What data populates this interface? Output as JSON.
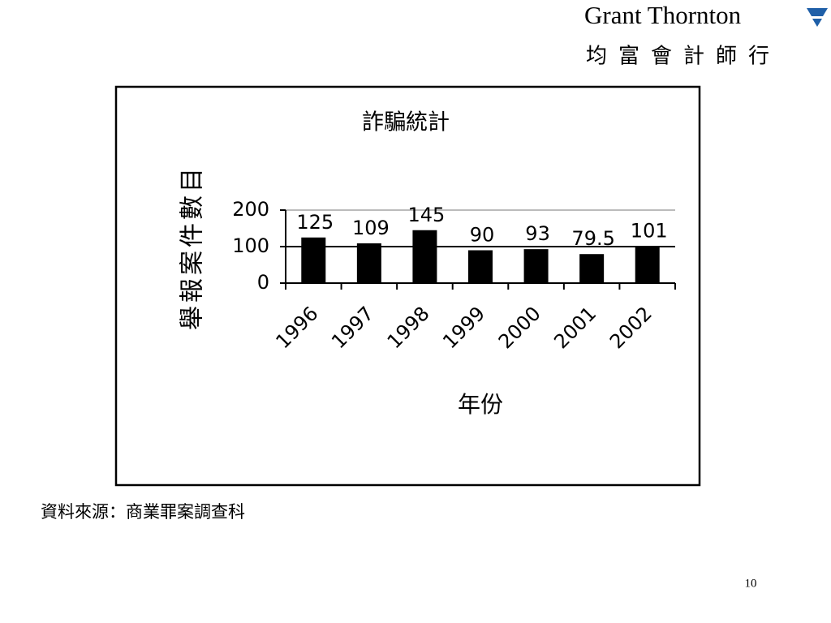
{
  "logo": {
    "name": "Grant Thornton",
    "chinese_name": "均富會計師行"
  },
  "chart_data": {
    "type": "bar",
    "title": "詐騙統計",
    "y_label": "舉報案件數目",
    "x_label": "年份",
    "categories": [
      "1996",
      "1997",
      "1998",
      "1999",
      "2000",
      "2001",
      "2002"
    ],
    "values": [
      125,
      109,
      145,
      90,
      93,
      79.5,
      101
    ],
    "color": "#000000",
    "ylim": [
      0,
      200
    ],
    "yticks": [
      0,
      100,
      200
    ],
    "grid": true
  },
  "source": "資料來源：商業罪案調查科",
  "page_number": 10
}
